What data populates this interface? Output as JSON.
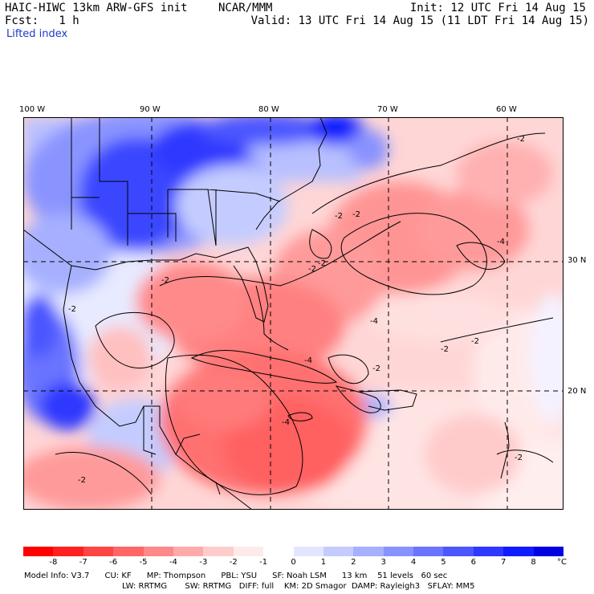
{
  "header": {
    "model": "HAIC-HIWC 13km ARW-GFS init",
    "org": "NCAR/MMM",
    "init": "Init: 12 UTC Fri 14 Aug 15",
    "fcst": "Fcst:   1 h",
    "valid": "Valid: 13 UTC Fri 14 Aug 15 (11 LDT Fri 14 Aug 15)",
    "field": "Lifted index"
  },
  "map": {
    "lon_labels": [
      "100 W",
      "90 W",
      "80 W",
      "70 W",
      "60 W"
    ],
    "lat_labels": [
      "30 N",
      "20 N"
    ],
    "contour_labels": [
      "-2",
      "-2",
      "-2",
      "-2",
      "-2",
      "-2",
      "-2",
      "-2",
      "-2",
      "-4",
      "-4",
      "-4",
      "-4",
      "-2",
      "-2",
      "-2"
    ]
  },
  "colorbar": {
    "colors": [
      "#ff0000",
      "#ff2020",
      "#ff4444",
      "#ff6666",
      "#ff8888",
      "#ffaaaa",
      "#ffcccc",
      "#ffeaea",
      "#ffffff",
      "#e2e6ff",
      "#c4ccff",
      "#a6b0ff",
      "#8892ff",
      "#6a74ff",
      "#4c56ff",
      "#2e38ff",
      "#101cff",
      "#0000e0"
    ],
    "ticks": [
      "-8",
      "-7",
      "-6",
      "-5",
      "-4",
      "-3",
      "-2",
      "-1",
      "0",
      "1",
      "2",
      "3",
      "4",
      "5",
      "6",
      "7",
      "8"
    ],
    "unit": "°C"
  },
  "model_info": {
    "line1": "Model Info: V3.7      CU: KF      MP: Thompson      PBL: YSU      SF: Noah LSM      13 km    51 levels   60 sec",
    "line2": "LW: RRTMG       SW: RRTMG   DIFF: full    KM: 2D Smagor  DAMP: Rayleigh3   SFLAY: MM5"
  }
}
